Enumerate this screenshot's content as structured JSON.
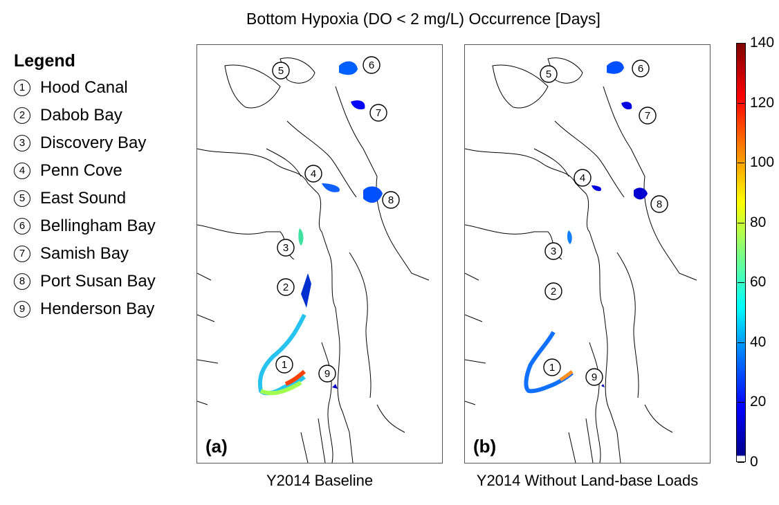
{
  "title": "Bottom Hypoxia (DO < 2 mg/L) Occurrence [Days]",
  "legend": {
    "heading": "Legend",
    "items": [
      {
        "num": "1",
        "name": "Hood Canal"
      },
      {
        "num": "2",
        "name": "Dabob Bay"
      },
      {
        "num": "3",
        "name": "Discovery Bay"
      },
      {
        "num": "4",
        "name": "Penn Cove"
      },
      {
        "num": "5",
        "name": "East Sound"
      },
      {
        "num": "6",
        "name": "Bellingham Bay"
      },
      {
        "num": "7",
        "name": "Samish Bay"
      },
      {
        "num": "8",
        "name": "Port Susan Bay"
      },
      {
        "num": "9",
        "name": "Henderson Bay"
      }
    ]
  },
  "panels": [
    {
      "label": "(a)",
      "caption": "Y2014 Baseline"
    },
    {
      "label": "(b)",
      "caption": "Y2014 Without Land-base Loads"
    }
  ],
  "colorbar": {
    "min": 0,
    "max": 140,
    "ticks": [
      "0",
      "20",
      "40",
      "60",
      "80",
      "100",
      "120",
      "140"
    ],
    "colormap": "jet",
    "colors": [
      "#00008f",
      "#0000ff",
      "#0080ff",
      "#00ffff",
      "#80ff80",
      "#ffff00",
      "#ff8000",
      "#ff0000",
      "#800000"
    ]
  },
  "markers": [
    "1",
    "2",
    "3",
    "4",
    "5",
    "6",
    "7",
    "8",
    "9"
  ]
}
